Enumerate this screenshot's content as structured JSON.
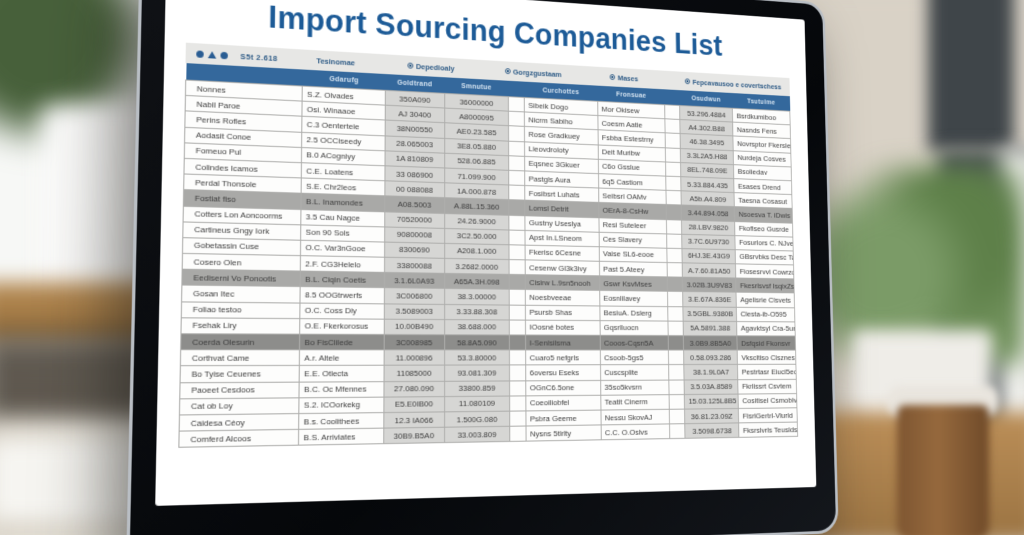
{
  "colors": {
    "title_blue": "#1d5b97",
    "header_blue": "#34689c",
    "header_text": "#d7e5f2",
    "toolbar_gray": "#e7e7e5",
    "toolbar_text": "#2e5b86",
    "shade_gray": "#d6d6d4",
    "row_mid": "#a9a9a7",
    "row_dark": "#8d8d8b",
    "border_gray": "#aeaeac",
    "cell_text": "#3c3c3c"
  },
  "page": {
    "title": "Import Sourcing Companies List",
    "toolbar": {
      "left_icons": [
        "circle-icon",
        "triangle-icon",
        "circle-icon"
      ],
      "left_text": "S5t 2.618",
      "items": [
        {
          "icon": null,
          "label": "Tesinomae"
        },
        {
          "icon": "badge-icon",
          "label": "Depedioaly"
        },
        {
          "icon": "badge-icon",
          "label": "Gorgzgustaam"
        },
        {
          "icon": "badge-icon",
          "label": "Mases"
        },
        {
          "icon": "badge-icon",
          "label": "Fepcavausoo e covertschess"
        }
      ]
    },
    "table": {
      "columns": [
        "",
        "Gdarufg",
        "Goldtrand",
        "Smnutue",
        "",
        "Curchottes",
        "Fronsuae",
        "",
        "Osudwun",
        "Tsutuime"
      ],
      "shaded_column_indexes": [
        2,
        3,
        8
      ],
      "rows": [
        {
          "highlight": "none",
          "cells": [
            "Nonnes",
            "S.Z. Olvades",
            "350A090",
            "36000000",
            "",
            "Sibeik Dogo",
            "Mor Okisew",
            "",
            "53.296.4884",
            "Bsrdkumiboo"
          ]
        },
        {
          "highlight": "none",
          "cells": [
            "Nabll Paroe",
            "Osi. Winaaoe",
            "AJ 30400",
            "A8000095",
            "",
            "Nicrm Sabiho",
            "Coesm Aatie",
            "",
            "A4.302.B88",
            "Nasnds Fens"
          ]
        },
        {
          "highlight": "none",
          "cells": [
            "Perins Rofles",
            "C.3 Oenterteie",
            "38N00550",
            "AE0.23.585",
            "",
            "Rose Gradkuey",
            "Fsbba Estestrny",
            "",
            "46.38.3495",
            "Novrsptor Fkerslem"
          ]
        },
        {
          "highlight": "none",
          "cells": [
            "Aodasit Conoe",
            "2.5 OCCiseedy",
            "28.065003",
            "3E8.05.880",
            "",
            "Lieovdroloty",
            "Deit Muribw",
            "",
            "3.3L2A5.H88",
            "Nurdeja Cosves"
          ]
        },
        {
          "highlight": "none",
          "cells": [
            "Fomeuo Pul",
            "B.0 ACogniyy",
            "1A 810809",
            "528.06.885",
            "",
            "Eqsnec 3Gkuer",
            "C6o Gsslue",
            "",
            "8EL.748.09E",
            "Bsoliedav"
          ]
        },
        {
          "highlight": "none",
          "cells": [
            "Colindes Icamos",
            "C.E. Loatens",
            "33 086900",
            "71.099.900",
            "",
            "Pastgls Aura",
            "6q5 Castiom",
            "",
            "5.33.884.435",
            "Esases Drend"
          ]
        },
        {
          "highlight": "none",
          "cells": [
            "Perdal Thonsole",
            "S.E. Chr2leos",
            "00 088088",
            "1A.000.878",
            "",
            "Fosibsrt Luhats",
            "Seibsrl OAMv",
            "",
            "A5b.A4.809",
            "Taesna Cosasut"
          ]
        },
        {
          "highlight": "mid",
          "cells": [
            "Fostiat fiso",
            "B.L. Inamondes",
            "A08.5003",
            "A.88L.15.360",
            "",
            "Lomsl Detrit",
            "OErA-8-CsHw",
            "",
            "3.44.894.058",
            "Nsoesva T. iDwis"
          ]
        },
        {
          "highlight": "none",
          "cells": [
            "Cotters Lon Aoncoorms",
            "3.5 Cau Nagce",
            "70520000",
            "24.26.9000",
            "",
            "Gustny Useslya",
            "Resi Suteleer",
            "",
            "28.LBV.9820",
            "Fkofiseo Gusrde"
          ]
        },
        {
          "highlight": "none",
          "cells": [
            "Cartineus Gngy Iork",
            "Son 90 Sols",
            "90800008",
            "3C2.50.000",
            "",
            "Apst In.LSneom",
            "Ces Slavery",
            "",
            "3.7C.6U9730",
            "Fosurlors C. NJvete"
          ]
        },
        {
          "highlight": "none",
          "cells": [
            "Gobetassin Cuse",
            "O.C. Var3nGooe",
            "8300690",
            "A208.1.000",
            "",
            "Fkerisc 6Cesne",
            "Vaise SL6-eooe",
            "",
            "6HJ.3E.43G9",
            "GBsrvbks Desc Tave"
          ]
        },
        {
          "highlight": "none",
          "cells": [
            "Cosero Olen",
            "2.F. CG3Helelo",
            "33800088",
            "3.2682.0000",
            "",
            "Cesenw Gl3k3ivy",
            "Past 5.Ateey",
            "",
            "A.7.60.81A50",
            "Fiosesrvvl Cowrzolt"
          ]
        },
        {
          "highlight": "mid",
          "cells": [
            "Eediserni Vo Ponootis",
            "B.L. Ciqin Coetis",
            "3.1.6L0A93",
            "A65A.3H.098",
            "",
            "Cisirw L.9sn5nooh",
            "Gswr KsvMses",
            "",
            "3.02B.3U9V83",
            "Fkesrlsvsf IsqixZserste"
          ]
        },
        {
          "highlight": "none",
          "cells": [
            "Gosan Itec",
            "8.5 OOGtrwerfs",
            "3C006800",
            "38.3.00000",
            "",
            "Noesbveeae",
            "Eosnlilavey",
            "",
            "3.E.67A.836E",
            "Agelisrie Clsvets"
          ]
        },
        {
          "highlight": "none",
          "cells": [
            "Foliao testoo",
            "O.C. Coss Diy",
            "3.5089003",
            "3.33.88.308",
            "",
            "Psursb Shas",
            "BesiuA. Dslerg",
            "",
            "3.5GBL.9380B",
            "Clesta-ib-O595"
          ]
        },
        {
          "highlight": "none",
          "cells": [
            "Fsehak Liry",
            "O.E. Fkerkorosus",
            "10.00B490",
            "38.688.000",
            "",
            "IOosné botes",
            "Gqsrlluocn",
            "",
            "5A.5891.388",
            "Agavktsyl Cra-5urte"
          ]
        },
        {
          "highlight": "dark",
          "cells": [
            "Coerda Olesurin",
            "Bo FisClilede",
            "3C008985",
            "58.8A5.090",
            "",
            "I-Senlsilsma",
            "Cooos-Cqsn5A",
            "",
            "3.0B9.8B5A0",
            "Dsfqsid Fkonsvr"
          ]
        },
        {
          "highlight": "none",
          "cells": [
            "Corthvat Came",
            "A.r. Altele",
            "11.000896",
            "53.3.80000",
            "",
            "Cuaro5 nefgrls",
            "Csoob-5gs5",
            "",
            "0.58.093.286",
            "Vkscltiso Clsznes"
          ]
        },
        {
          "highlight": "none",
          "cells": [
            "Bo Tyise Ceuenes",
            "E.E. Otlecta",
            "11085000",
            "93.081.309",
            "",
            "6oversu Eseks",
            "Cuscsplite",
            "",
            "38.1.9L0A7",
            "Pestrtasr Eiucl5eoe"
          ]
        },
        {
          "highlight": "none",
          "cells": [
            "Paoeet Cesdoos",
            "B.C. Oc Mfennes",
            "27.080.090",
            "33800.859",
            "",
            "OGnC6.5one",
            "35so5kvsrn",
            "",
            "3.5.03A.8589",
            "Fkrlissrt Csvtem"
          ]
        },
        {
          "highlight": "none",
          "cells": [
            "Cat ob Loy",
            "S.2. ICOorkekg",
            "E5.E0IB00",
            "11.080109",
            "",
            "Coeoiliobfel",
            "Teatit Cinerm",
            "",
            "15.03.125L8B5",
            "Cositisel Csmoblvlkry"
          ]
        },
        {
          "highlight": "none",
          "cells": [
            "Caidesa Céoy",
            "B.s. Coolithees",
            "12.3 IA066",
            "1.500G.080",
            "",
            "Psbra Geeme",
            "Nessu SkovAJ",
            "",
            "36.81.23.09Z",
            "FlsrlGertrl-Vlurld"
          ]
        },
        {
          "highlight": "none",
          "cells": [
            "Comferd Alcoos",
            "B.S. Arriviates",
            "30B9.B5A0",
            "33.003.809",
            "",
            "Nysns 5tlrlty",
            "C.C. O.Oslvs",
            "",
            "3.5098.6738",
            "Fksrslvrls Teusldses"
          ]
        }
      ]
    }
  }
}
